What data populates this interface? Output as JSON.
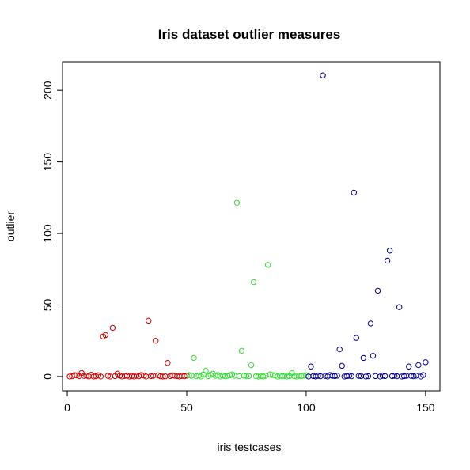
{
  "chart_data": {
    "type": "scatter",
    "title": "Iris dataset outlier measures",
    "xlabel": "iris testcases",
    "ylabel": "outlier",
    "xlim": [
      -2,
      156
    ],
    "ylim": [
      -10,
      220
    ],
    "x_ticks": [
      0,
      50,
      100,
      150
    ],
    "y_ticks": [
      0,
      50,
      100,
      150,
      200
    ],
    "grid": false,
    "legend": "none",
    "marker": "open-circle",
    "series": [
      {
        "color": "#cc0000",
        "x_start": 1,
        "values": [
          0.0,
          0.2,
          1.0,
          0.8,
          0.3,
          2.5,
          0.4,
          0.6,
          0.1,
          1.2,
          0.0,
          0.2,
          0.9,
          0.0,
          28.0,
          29.0,
          0.5,
          0.0,
          34.0,
          0.3,
          2.0,
          0.6,
          0.0,
          0.4,
          0.6,
          0.0,
          0.3,
          0.0,
          0.5,
          0.2,
          1.0,
          0.7,
          0.0,
          39.0,
          0.3,
          0.5,
          25.0,
          0.8,
          0.2,
          0.0,
          0.1,
          9.5,
          0.3,
          0.8,
          0.5,
          0.3,
          0.0,
          0.4,
          0.2,
          0.6
        ]
      },
      {
        "color": "#33dd33",
        "x_start": 51,
        "values": [
          1.0,
          0.5,
          13.0,
          0.2,
          0.7,
          0.0,
          1.5,
          4.0,
          0.3,
          1.2,
          2.0,
          0.5,
          1.0,
          0.0,
          0.6,
          0.2,
          0.4,
          0.8,
          1.5,
          0.5,
          121.5,
          0.2,
          18.0,
          0.6,
          0.4,
          0.3,
          8.0,
          66.0,
          0.2,
          0.0,
          0.3,
          0.0,
          0.5,
          78.0,
          1.5,
          1.0,
          0.8,
          0.0,
          0.5,
          0.2,
          0.4,
          0.0,
          0.3,
          2.5,
          0.2,
          0.0,
          0.4,
          0.3,
          0.6,
          0.8
        ]
      },
      {
        "color": "#00008b",
        "x_start": 101,
        "values": [
          0.0,
          7.0,
          0.3,
          0.0,
          0.5,
          0.2,
          210.5,
          0.4,
          0.0,
          1.0,
          0.5,
          0.3,
          0.6,
          19.0,
          7.5,
          0.0,
          0.3,
          0.5,
          0.2,
          128.5,
          27.0,
          0.4,
          0.3,
          13.0,
          0.0,
          0.2,
          37.0,
          14.5,
          0.3,
          60.0,
          0.0,
          0.5,
          0.3,
          81.0,
          88.0,
          0.3,
          0.5,
          0.2,
          48.5,
          0.0,
          0.3,
          0.5,
          7.0,
          0.4,
          0.2,
          0.6,
          8.0,
          0.0,
          1.0,
          10.0
        ]
      }
    ]
  }
}
